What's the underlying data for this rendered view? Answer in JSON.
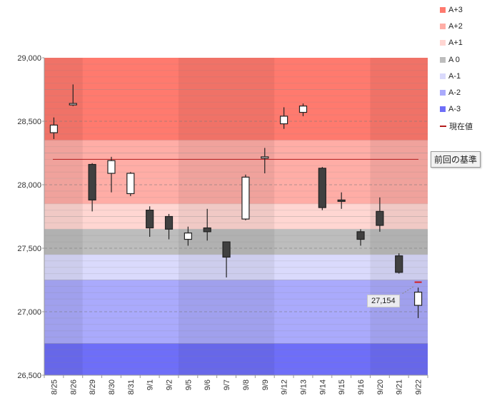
{
  "chart_data": {
    "type": "candlestick",
    "ylim": [
      26500,
      29000
    ],
    "y_ticks": [
      "26,500",
      "27,000",
      "27,500",
      "28,000",
      "28,500",
      "29,000"
    ],
    "categories": [
      "8/25",
      "8/26",
      "8/29",
      "8/30",
      "8/31",
      "9/1",
      "9/2",
      "9/5",
      "9/6",
      "9/7",
      "9/8",
      "9/9",
      "9/12",
      "9/13",
      "9/14",
      "9/15",
      "9/16",
      "9/20",
      "9/21",
      "9/22"
    ],
    "candles": [
      {
        "date": "8/25",
        "open": 28410,
        "high": 28530,
        "low": 28360,
        "close": 28470
      },
      {
        "date": "8/26",
        "open": 28630,
        "high": 28790,
        "low": 28620,
        "close": 28640
      },
      {
        "date": "8/29",
        "open": 28160,
        "high": 28170,
        "low": 27790,
        "close": 27880
      },
      {
        "date": "8/30",
        "open": 28090,
        "high": 28220,
        "low": 27940,
        "close": 28190
      },
      {
        "date": "8/31",
        "open": 27930,
        "high": 28100,
        "low": 27910,
        "close": 28090
      },
      {
        "date": "9/1",
        "open": 27800,
        "high": 27830,
        "low": 27590,
        "close": 27660
      },
      {
        "date": "9/2",
        "open": 27750,
        "high": 27770,
        "low": 27570,
        "close": 27650
      },
      {
        "date": "9/5",
        "open": 27570,
        "high": 27670,
        "low": 27520,
        "close": 27620
      },
      {
        "date": "9/6",
        "open": 27660,
        "high": 27810,
        "low": 27560,
        "close": 27630
      },
      {
        "date": "9/7",
        "open": 27550,
        "high": 27550,
        "low": 27270,
        "close": 27430
      },
      {
        "date": "9/8",
        "open": 27730,
        "high": 28080,
        "low": 27720,
        "close": 28060
      },
      {
        "date": "9/9",
        "open": 28210,
        "high": 28290,
        "low": 28090,
        "close": 28220
      },
      {
        "date": "9/12",
        "open": 28480,
        "high": 28610,
        "low": 28440,
        "close": 28540
      },
      {
        "date": "9/13",
        "open": 28570,
        "high": 28640,
        "low": 28540,
        "close": 28620
      },
      {
        "date": "9/14",
        "open": 28130,
        "high": 28140,
        "low": 27800,
        "close": 27820
      },
      {
        "date": "9/15",
        "open": 27880,
        "high": 27940,
        "low": 27810,
        "close": 27870
      },
      {
        "date": "9/16",
        "open": 27630,
        "high": 27650,
        "low": 27520,
        "close": 27570
      },
      {
        "date": "9/20",
        "open": 27790,
        "high": 27900,
        "low": 27630,
        "close": 27680
      },
      {
        "date": "9/21",
        "open": 27440,
        "high": 27460,
        "low": 27300,
        "close": 27310
      },
      {
        "date": "9/22",
        "open": 27050,
        "high": 27190,
        "low": 26950,
        "close": 27154
      }
    ],
    "bands": [
      {
        "name": "A+3",
        "from": 28350,
        "to": 29000,
        "color": "#ff7a6e"
      },
      {
        "name": "A+2",
        "from": 28050,
        "to": 28350,
        "color": "#ffada6"
      },
      {
        "name": "A+1",
        "from": 27650,
        "to": 27850,
        "color": "#ffd6d2"
      },
      {
        "name": "A 0",
        "from": 27450,
        "to": 27650,
        "color": "#bdbdbd"
      },
      {
        "name": "A-1",
        "from": 27250,
        "to": 27450,
        "color": "#dadafc"
      },
      {
        "name": "A-2",
        "from": 26750,
        "to": 27250,
        "color": "#aaaafc"
      },
      {
        "name": "A-3",
        "from": 26500,
        "to": 26750,
        "color": "#6e6ef8"
      }
    ],
    "band_A2_lower": {
      "from": 27850,
      "to": 28050,
      "color": "#ffada6"
    },
    "reference_value": 28200,
    "current_value": 27154,
    "colors": {
      "up": "#ffffff",
      "down": "#404040",
      "reference_line": "#b41c1c",
      "current_marker": "#d42020"
    }
  },
  "legend": [
    {
      "label": "A+3",
      "color": "#ff7a6e",
      "kind": "box"
    },
    {
      "label": "A+2",
      "color": "#ffada6",
      "kind": "box"
    },
    {
      "label": "A+1",
      "color": "#ffd6d2",
      "kind": "box"
    },
    {
      "label": "A 0",
      "color": "#bdbdbd",
      "kind": "box"
    },
    {
      "label": "A-1",
      "color": "#dadafc",
      "kind": "box"
    },
    {
      "label": "A-2",
      "color": "#aaaafc",
      "kind": "box"
    },
    {
      "label": "A-3",
      "color": "#6e6ef8",
      "kind": "box"
    },
    {
      "label": "現在値",
      "color": "#b41c1c",
      "kind": "line"
    }
  ],
  "reference_label": "前回の基準",
  "current_price_label": "27,154"
}
